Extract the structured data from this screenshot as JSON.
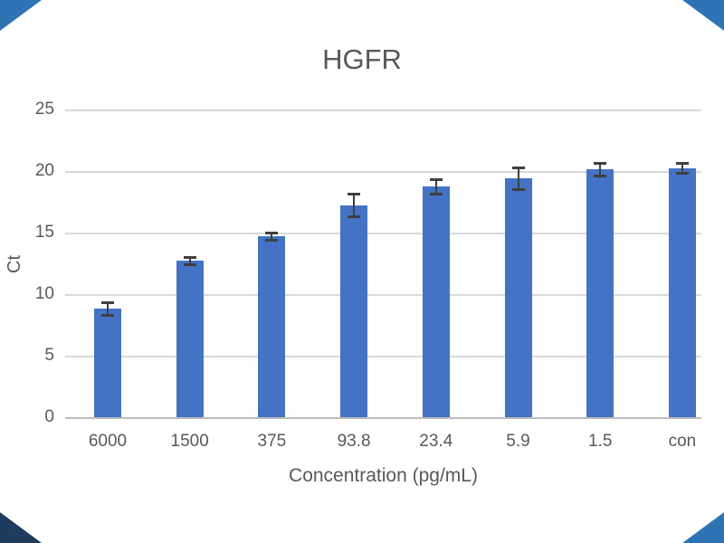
{
  "figure": {
    "title": "HGFR",
    "x_axis_title": "Concentration (pg/mL)",
    "y_axis_title": "Ct"
  },
  "chart_data": {
    "type": "bar",
    "title": "HGFR",
    "xlabel": "Concentration (pg/mL)",
    "ylabel": "Ct",
    "categories": [
      "6000",
      "1500",
      "375",
      "93.8",
      "23.4",
      "5.9",
      "1.5",
      "con"
    ],
    "values": [
      8.9,
      12.8,
      14.8,
      17.3,
      18.8,
      19.5,
      20.2,
      20.3
    ],
    "error_bars": [
      0.5,
      0.3,
      0.3,
      0.9,
      0.6,
      0.9,
      0.5,
      0.4
    ],
    "ylim": [
      0,
      25
    ],
    "yticks": [
      0,
      5,
      10,
      15,
      20,
      25
    ],
    "grid": true,
    "legend": "none",
    "bar_color": "#4472C4",
    "error_bar_color": "#3F3F3F",
    "gridline_color": "#D9D9D9",
    "axis_line_color": "#BDBDBD",
    "text_color": "#595959"
  },
  "corner_markers": {
    "top_left_color": "#2E74B5",
    "top_right_color": "#2E74B5",
    "bottom_left_color": "#1F3C5F",
    "bottom_right_color": "#2E74B5"
  }
}
